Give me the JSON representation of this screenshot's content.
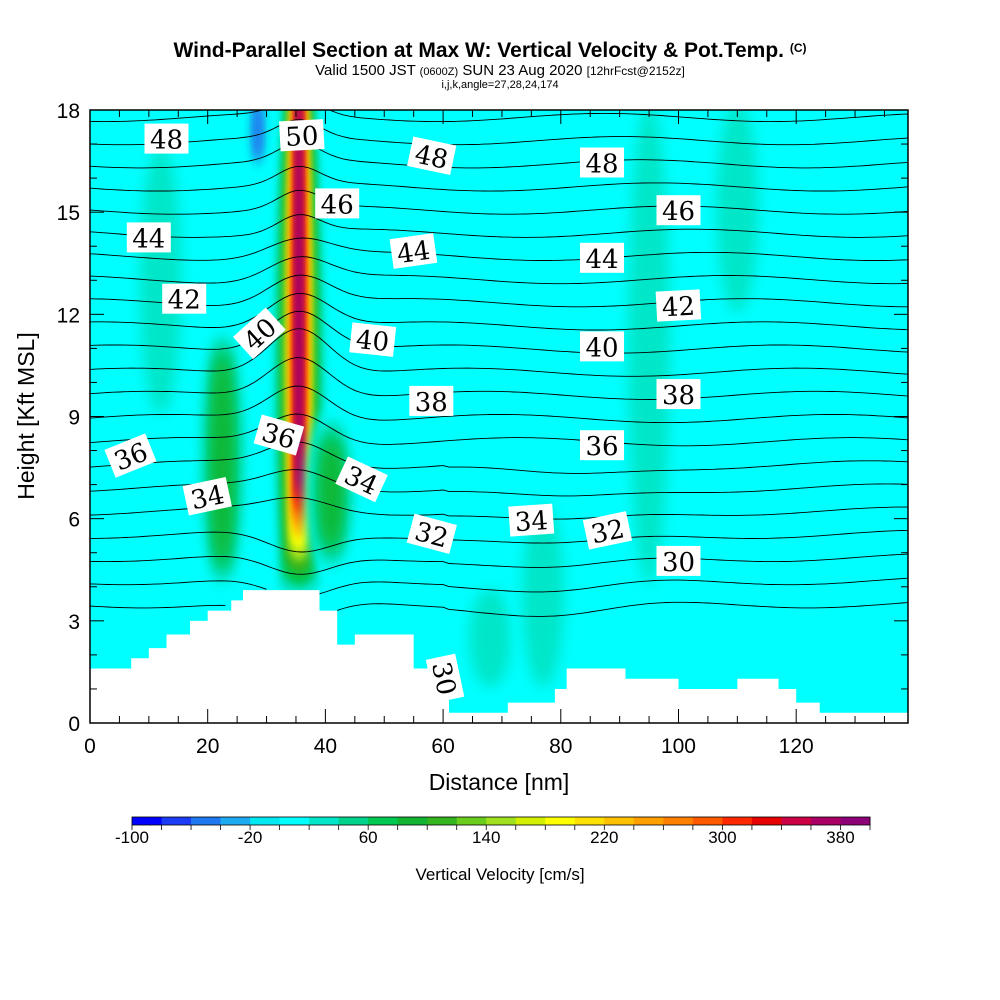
{
  "title": {
    "main": "Wind-Parallel Section at Max W: Vertical Velocity & Pot.Temp.",
    "main_suffix": "(C)",
    "valid_prefix": "Valid 1500 JST",
    "valid_zulu": "(0600Z)",
    "valid_date": "SUN 23 Aug 2020",
    "forecast": "[12hrFcst@2152z]",
    "indices": "i,j,k,angle=27,28,24,174"
  },
  "chart_data": {
    "type": "heatmap",
    "xlabel": "Distance [nm]",
    "ylabel": "Height [Kft MSL]",
    "xlim": [
      0,
      139
    ],
    "ylim": [
      0,
      18
    ],
    "x_ticks": [
      "0",
      "20",
      "40",
      "60",
      "80",
      "100",
      "120"
    ],
    "y_ticks": [
      "0",
      "3",
      "6",
      "9",
      "12",
      "15",
      "18"
    ],
    "background_velocity_cm_s": 0,
    "colorbar": {
      "label": "Vertical Velocity [cm/s]",
      "min": -100,
      "max": 400,
      "step": 20,
      "tick_labels": [
        "-100",
        "-20",
        "60",
        "140",
        "220",
        "300",
        "380"
      ],
      "colors": [
        "#0000ff",
        "#1a3cf5",
        "#1e78ef",
        "#1eaaf0",
        "#00e8f0",
        "#00ffff",
        "#00e6c8",
        "#00d28c",
        "#00c850",
        "#12b432",
        "#34b41e",
        "#6acc1c",
        "#a0e01e",
        "#d2f000",
        "#ffff00",
        "#ffe000",
        "#ffc000",
        "#ffa000",
        "#ff8000",
        "#ff5a00",
        "#ff2800",
        "#e60000",
        "#cc0044",
        "#aa0066",
        "#8c0078"
      ]
    },
    "terrain": [
      [
        0,
        1.6
      ],
      [
        7,
        1.6
      ],
      [
        7,
        1.9
      ],
      [
        10,
        1.9
      ],
      [
        10,
        2.2
      ],
      [
        13,
        2.2
      ],
      [
        13,
        2.6
      ],
      [
        17,
        2.6
      ],
      [
        17,
        3.0
      ],
      [
        20,
        3.0
      ],
      [
        20,
        3.3
      ],
      [
        24,
        3.3
      ],
      [
        24,
        3.6
      ],
      [
        26,
        3.6
      ],
      [
        26,
        3.9
      ],
      [
        39,
        3.9
      ],
      [
        39,
        3.3
      ],
      [
        42,
        3.3
      ],
      [
        42,
        2.3
      ],
      [
        45,
        2.3
      ],
      [
        45,
        2.6
      ],
      [
        55,
        2.6
      ],
      [
        55,
        1.6
      ],
      [
        61,
        1.6
      ],
      [
        61,
        0.3
      ],
      [
        71,
        0.3
      ],
      [
        71,
        0.6
      ],
      [
        79,
        0.6
      ],
      [
        79,
        1.0
      ],
      [
        81,
        1.0
      ],
      [
        81,
        1.6
      ],
      [
        91,
        1.6
      ],
      [
        91,
        1.3
      ],
      [
        100,
        1.3
      ],
      [
        100,
        1.0
      ],
      [
        110,
        1.0
      ],
      [
        110,
        1.3
      ],
      [
        117,
        1.3
      ],
      [
        117,
        1.0
      ],
      [
        120,
        1.0
      ],
      [
        120,
        0.6
      ],
      [
        124,
        0.6
      ],
      [
        124,
        0.3
      ],
      [
        139,
        0.3
      ]
    ],
    "velocity_features": [
      {
        "x": 35.5,
        "y_range": [
          4.0,
          18
        ],
        "peak_cm_s": 380
      },
      {
        "x": 28.5,
        "y_range": [
          16.5,
          18
        ],
        "peak_cm_s": -60
      },
      {
        "x": 22.5,
        "y_range": [
          4.0,
          11.5
        ],
        "peak_cm_s": 80
      },
      {
        "x": 41.0,
        "y_range": [
          4.5,
          9.0
        ],
        "peak_cm_s": 80
      },
      {
        "x": 12.0,
        "y_range": [
          9.0,
          17.0
        ],
        "peak_cm_s": 20
      },
      {
        "x": 68.0,
        "y_range": [
          1.0,
          4.0
        ],
        "peak_cm_s": 20
      },
      {
        "x": 77.0,
        "y_range": [
          1.0,
          6.5
        ],
        "peak_cm_s": 20
      },
      {
        "x": 95.0,
        "y_range": [
          4.0,
          18
        ],
        "peak_cm_s": 20
      },
      {
        "x": 110.0,
        "y_range": [
          12.0,
          18
        ],
        "peak_cm_s": 20
      }
    ],
    "contour_interval_c": 1,
    "contour_labels": [
      {
        "text": "48",
        "x": 13,
        "y": 17.1,
        "angle": 0
      },
      {
        "text": "50",
        "x": 36,
        "y": 17.2,
        "angle": -3
      },
      {
        "text": "48",
        "x": 58,
        "y": 16.6,
        "angle": 12
      },
      {
        "text": "48",
        "x": 87,
        "y": 16.4,
        "angle": 0
      },
      {
        "text": "46",
        "x": 42,
        "y": 15.2,
        "angle": 0
      },
      {
        "text": "46",
        "x": 100,
        "y": 15.0,
        "angle": 0
      },
      {
        "text": "44",
        "x": 10,
        "y": 14.2,
        "angle": 0
      },
      {
        "text": "44",
        "x": 55,
        "y": 13.8,
        "angle": -8
      },
      {
        "text": "44",
        "x": 87,
        "y": 13.6,
        "angle": 0
      },
      {
        "text": "42",
        "x": 16,
        "y": 12.4,
        "angle": 0
      },
      {
        "text": "42",
        "x": 100,
        "y": 12.2,
        "angle": -3
      },
      {
        "text": "40",
        "x": 29,
        "y": 11.4,
        "angle": -42
      },
      {
        "text": "40",
        "x": 48,
        "y": 11.2,
        "angle": 6
      },
      {
        "text": "40",
        "x": 87,
        "y": 11.0,
        "angle": 0
      },
      {
        "text": "38",
        "x": 58,
        "y": 9.4,
        "angle": 0
      },
      {
        "text": "38",
        "x": 100,
        "y": 9.6,
        "angle": 0
      },
      {
        "text": "36",
        "x": 7,
        "y": 7.8,
        "angle": -22
      },
      {
        "text": "36",
        "x": 32,
        "y": 8.4,
        "angle": 16
      },
      {
        "text": "36",
        "x": 87,
        "y": 8.1,
        "angle": 0
      },
      {
        "text": "34",
        "x": 20,
        "y": 6.6,
        "angle": -12
      },
      {
        "text": "34",
        "x": 46,
        "y": 7.1,
        "angle": 25
      },
      {
        "text": "34",
        "x": 75,
        "y": 5.9,
        "angle": -4
      },
      {
        "text": "32",
        "x": 58,
        "y": 5.5,
        "angle": 15
      },
      {
        "text": "32",
        "x": 88,
        "y": 5.6,
        "angle": -12
      },
      {
        "text": "30",
        "x": 100,
        "y": 4.7,
        "angle": 0
      },
      {
        "text": "30",
        "x": 60,
        "y": 1.3,
        "angle": 78
      }
    ]
  }
}
